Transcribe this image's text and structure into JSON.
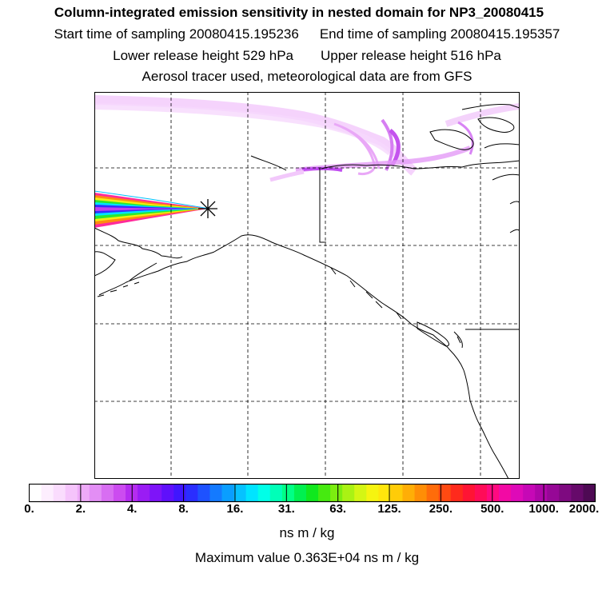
{
  "header": {
    "title": "Column-integrated emission sensitivity in nested domain for NP3_20080415",
    "start_sampling": "Start time of sampling 20080415.195236",
    "end_sampling": "End time of sampling 20080415.195357",
    "lower_release": "Lower release height  529 hPa",
    "upper_release": "Upper release height  516 hPa",
    "tracer_note": "Aerosol tracer used, meteorological data are from GFS"
  },
  "colorbar": {
    "tick_labels": [
      "0.",
      "2.",
      "4.",
      "8.",
      "16.",
      "31.",
      "63.",
      "125.",
      "250.",
      "500.",
      "1000.",
      "2000."
    ],
    "colors": [
      "#ffffff",
      "#fdeefe",
      "#fadcfd",
      "#f5c4fb",
      "#eeaaf8",
      "#e38ef5",
      "#d86ef2",
      "#cc4cf0",
      "#b52cf0",
      "#9a1cf4",
      "#7e14f8",
      "#5f10fb",
      "#4016fe",
      "#2a2eff",
      "#1e52ff",
      "#147aff",
      "#0a9eff",
      "#06c2ff",
      "#00e4ff",
      "#00ffe8",
      "#00ffb8",
      "#00ff86",
      "#00f050",
      "#10e81e",
      "#46ea10",
      "#7cee10",
      "#aaf214",
      "#d4f614",
      "#f6f410",
      "#ffe60c",
      "#ffcc08",
      "#ffae06",
      "#ff8e06",
      "#ff6c0a",
      "#ff4a12",
      "#ff2a1c",
      "#ff1434",
      "#ff0c58",
      "#ff0a80",
      "#f20aa4",
      "#de0ab8",
      "#c608b6",
      "#ae06a8",
      "#960896",
      "#7e0a80",
      "#660a6a",
      "#4e0a54"
    ],
    "units": "ns m / kg",
    "max_value": "Maximum value  0.363E+04 ns m / kg"
  },
  "map": {
    "release_marker": "star-symbol"
  }
}
